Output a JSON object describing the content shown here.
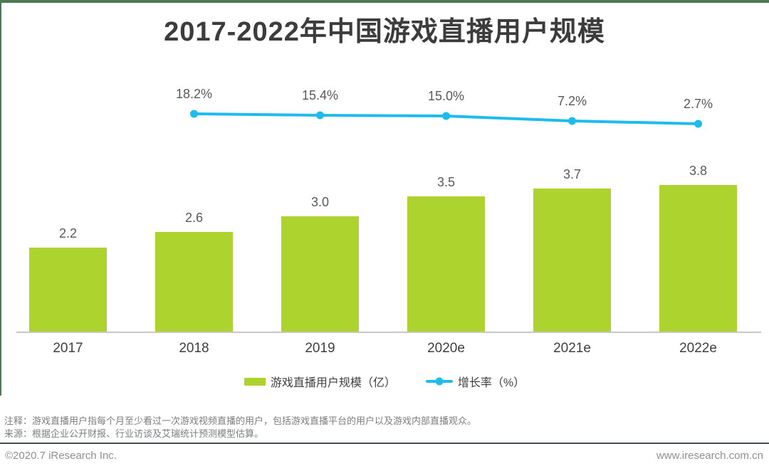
{
  "title": "2017-2022年中国游戏直播用户规模",
  "chart_data": {
    "type": "bar",
    "categories": [
      "2017",
      "2018",
      "2019",
      "2020e",
      "2021e",
      "2022e"
    ],
    "series": [
      {
        "name": "游戏直播用户规模（亿）",
        "type": "bar",
        "values": [
          2.2,
          2.6,
          3.0,
          3.5,
          3.7,
          3.8
        ]
      },
      {
        "name": "增长率（%）",
        "type": "line",
        "values": [
          null,
          18.2,
          15.4,
          15.0,
          7.2,
          2.7
        ]
      }
    ],
    "bar_value_labels": [
      "2.2",
      "2.6",
      "3.0",
      "3.5",
      "3.7",
      "3.8"
    ],
    "growth_labels": [
      null,
      "18.2%",
      "15.4%",
      "15.0%",
      "7.2%",
      "2.7%"
    ],
    "title": "2017-2022年中国游戏直播用户规模",
    "xlabel": "",
    "ylabel": "",
    "ylim": [
      0,
      4.2
    ],
    "secondary_ylim_percent": [
      0,
      20
    ],
    "grid": false,
    "legend_position": "bottom"
  },
  "legend": {
    "bar": "游戏直播用户规模（亿）",
    "line": "增长率（%）"
  },
  "notes": [
    "注释：游戏直播用户指每个月至少看过一次游戏视频直播的用户，包括游戏直播平台的用户以及游戏内部直播观众。",
    "来源：根据企业公开财报、行业访谈及艾瑞统计预测模型估算。"
  ],
  "footer": {
    "copyright": "©2020.7 iResearch Inc.",
    "website": "www.iresearch.com.cn"
  },
  "colors": {
    "bar": "#ADD32F",
    "line": "#1EBCEE",
    "accent_border": "#4E7B55",
    "axis": "#C7C7C7",
    "divider": "#474F57",
    "title_text": "#3C3C3C",
    "value_text": "#595959",
    "note_text": "#7D7D7D",
    "footer_text": "#909090"
  }
}
